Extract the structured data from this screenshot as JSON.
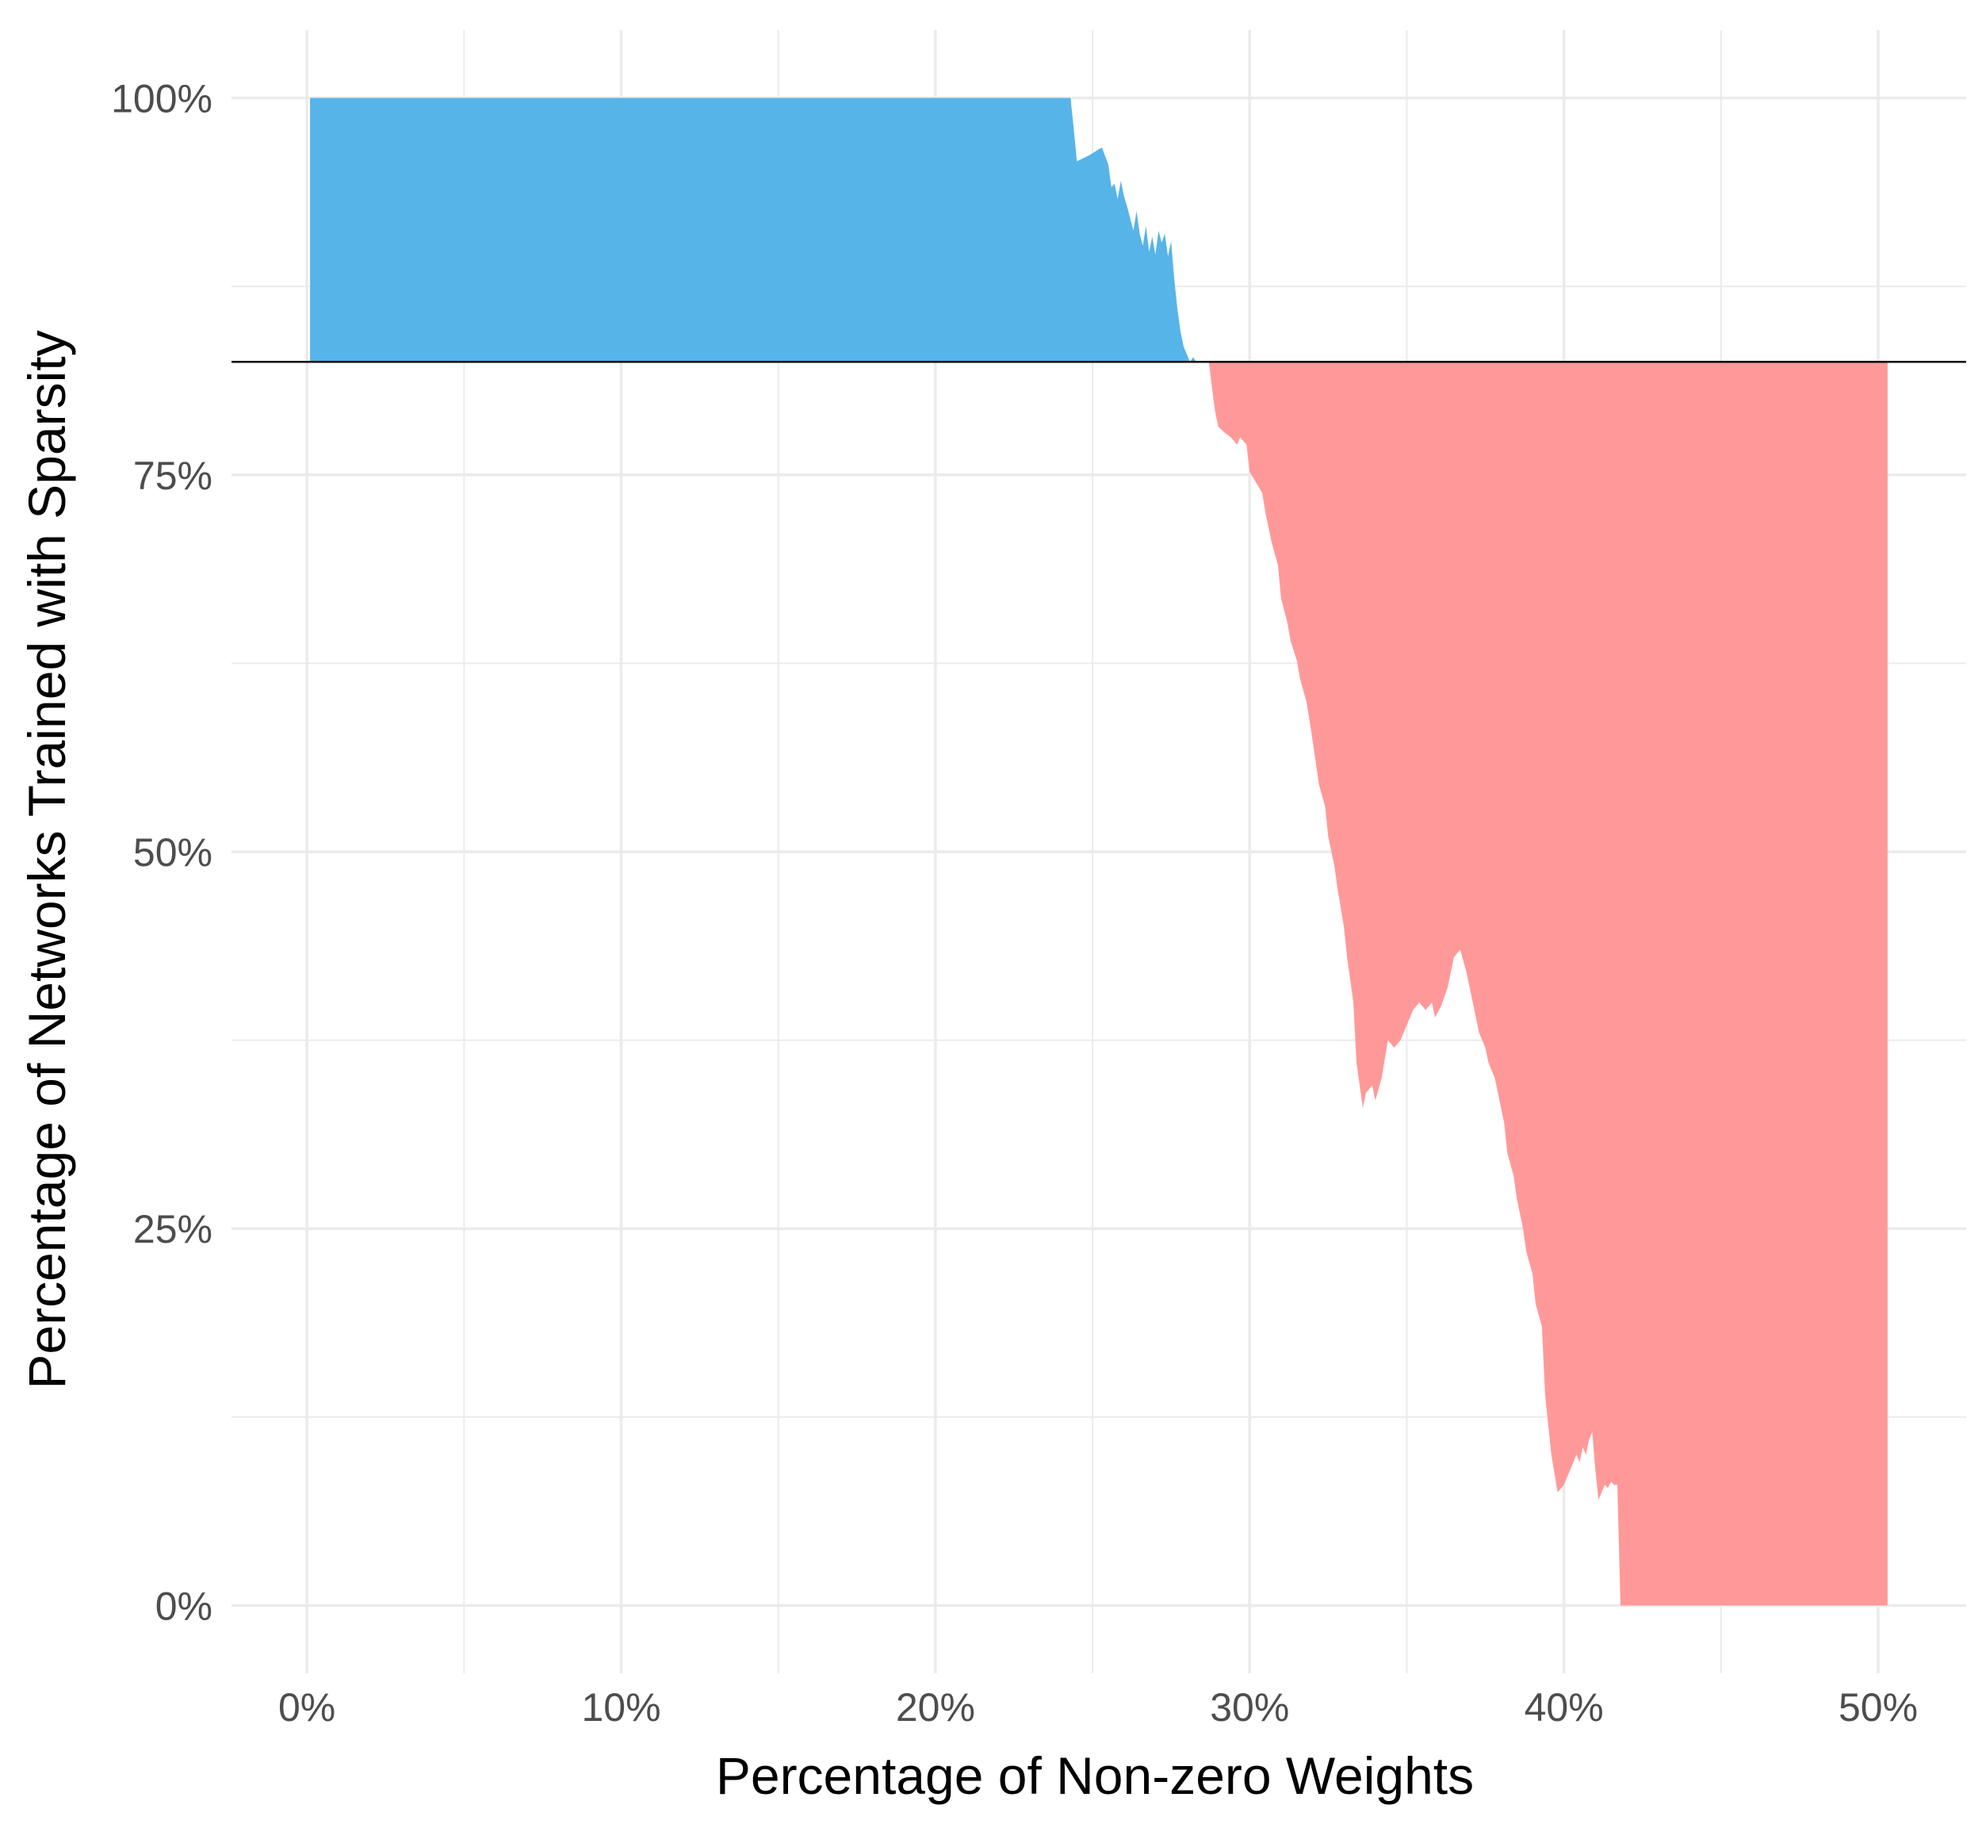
{
  "chart_data": {
    "type": "area",
    "title": "",
    "xlabel": "Percentage of Non-zero Weights",
    "ylabel": "Percentage of Networks Trained with Sparsity",
    "xlim": [
      -0.024,
      0.528
    ],
    "ylim": [
      -0.045,
      1.045
    ],
    "x_ticks": [
      0,
      0.1,
      0.2,
      0.3,
      0.4,
      0.5
    ],
    "x_tick_labels": [
      "0%",
      "10%",
      "20%",
      "30%",
      "40%",
      "50%"
    ],
    "x_minor_ticks": [
      0.05,
      0.15,
      0.25,
      0.35,
      0.45
    ],
    "y_ticks": [
      0,
      0.25,
      0.5,
      0.75,
      1.0
    ],
    "y_tick_labels": [
      "0%",
      "25%",
      "50%",
      "75%",
      "100%"
    ],
    "y_minor_ticks": [
      0.125,
      0.375,
      0.625,
      0.875
    ],
    "grid": true,
    "reference_line": 0.825,
    "colors": {
      "above": "#56B4E9",
      "below": "#FF9999",
      "line": "#000000",
      "grid": "#EBEBEB"
    },
    "x": [
      0.001,
      0.243,
      0.244,
      0.245,
      0.249,
      0.252,
      0.253,
      0.255,
      0.256,
      0.257,
      0.258,
      0.259,
      0.26,
      0.261,
      0.262,
      0.263,
      0.264,
      0.265,
      0.266,
      0.267,
      0.268,
      0.269,
      0.27,
      0.271,
      0.272,
      0.273,
      0.274,
      0.275,
      0.276,
      0.277,
      0.278,
      0.279,
      0.28,
      0.281,
      0.282,
      0.283,
      0.284,
      0.285,
      0.286,
      0.287,
      0.288,
      0.289,
      0.29,
      0.292,
      0.294,
      0.296,
      0.297,
      0.299,
      0.3,
      0.302,
      0.304,
      0.305,
      0.307,
      0.309,
      0.31,
      0.312,
      0.313,
      0.315,
      0.316,
      0.318,
      0.319,
      0.321,
      0.322,
      0.324,
      0.325,
      0.327,
      0.328,
      0.33,
      0.331,
      0.333,
      0.334,
      0.336,
      0.337,
      0.339,
      0.34,
      0.342,
      0.344,
      0.346,
      0.348,
      0.35,
      0.352,
      0.354,
      0.356,
      0.358,
      0.359,
      0.361,
      0.363,
      0.365,
      0.367,
      0.369,
      0.37,
      0.372,
      0.373,
      0.375,
      0.376,
      0.378,
      0.379,
      0.381,
      0.382,
      0.384,
      0.385,
      0.387,
      0.388,
      0.39,
      0.391,
      0.393,
      0.394,
      0.396,
      0.398,
      0.4,
      0.402,
      0.404,
      0.405,
      0.406,
      0.407,
      0.408,
      0.409,
      0.41,
      0.411,
      0.412,
      0.413,
      0.414,
      0.415,
      0.416,
      0.417,
      0.4175,
      0.418,
      0.503
    ],
    "y": [
      1.0,
      1.0,
      0.98,
      0.958,
      0.962,
      0.966,
      0.967,
      0.956,
      0.941,
      0.943,
      0.933,
      0.945,
      0.935,
      0.928,
      0.92,
      0.912,
      0.925,
      0.91,
      0.902,
      0.915,
      0.898,
      0.908,
      0.896,
      0.912,
      0.904,
      0.91,
      0.895,
      0.905,
      0.88,
      0.86,
      0.845,
      0.835,
      0.83,
      0.825,
      0.828,
      0.825,
      0.825,
      0.825,
      0.825,
      0.825,
      0.808,
      0.792,
      0.782,
      0.778,
      0.775,
      0.77,
      0.775,
      0.77,
      0.752,
      0.745,
      0.738,
      0.725,
      0.705,
      0.69,
      0.668,
      0.652,
      0.64,
      0.627,
      0.615,
      0.6,
      0.588,
      0.56,
      0.545,
      0.53,
      0.51,
      0.49,
      0.475,
      0.45,
      0.43,
      0.4,
      0.36,
      0.33,
      0.34,
      0.345,
      0.335,
      0.35,
      0.375,
      0.37,
      0.375,
      0.385,
      0.395,
      0.4,
      0.395,
      0.4,
      0.39,
      0.398,
      0.41,
      0.43,
      0.435,
      0.42,
      0.41,
      0.39,
      0.38,
      0.37,
      0.36,
      0.35,
      0.34,
      0.32,
      0.3,
      0.285,
      0.27,
      0.25,
      0.235,
      0.22,
      0.2,
      0.185,
      0.14,
      0.1,
      0.075,
      0.08,
      0.09,
      0.1,
      0.095,
      0.105,
      0.1,
      0.11,
      0.115,
      0.09,
      0.07,
      0.075,
      0.08,
      0.078,
      0.082,
      0.08,
      0.08,
      0.04,
      0.0,
      0.0
    ]
  }
}
